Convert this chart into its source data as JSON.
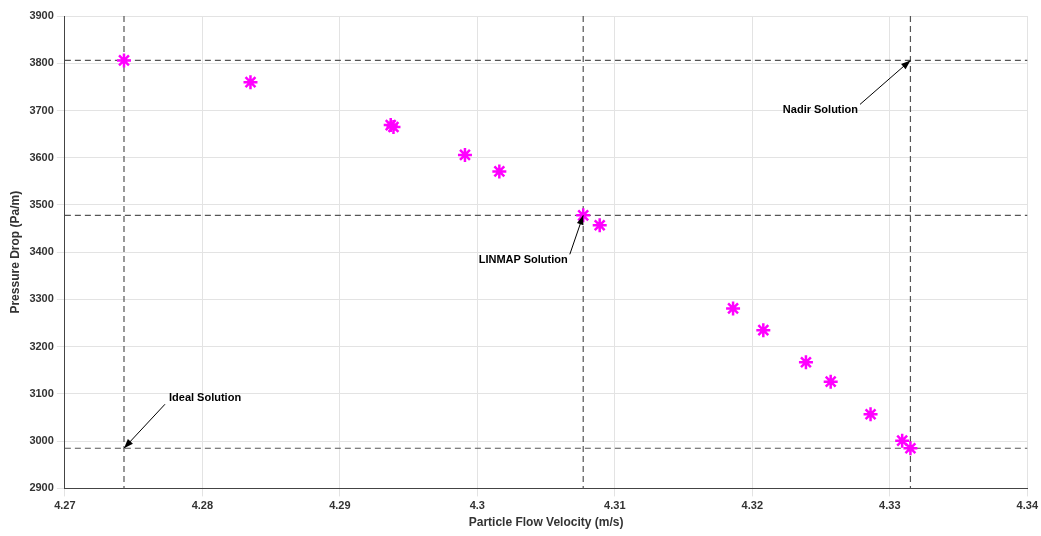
{
  "chart_data": {
    "type": "scatter",
    "xlabel": "Particle Flow Velocity (m/s)",
    "ylabel": "Pressure Drop (Pa/m)",
    "x": [
      4.2743,
      4.2835,
      4.2937,
      4.2939,
      4.2991,
      4.3016,
      4.3077,
      4.3089,
      4.3186,
      4.3208,
      4.3239,
      4.3257,
      4.3286,
      4.3309,
      4.3315
    ],
    "series": [
      {
        "color": "#ff00ff",
        "values": [
          3806,
          3760,
          3669,
          3665,
          3606,
          3571,
          3478,
          3457,
          3281,
          3235,
          3167,
          3126,
          3057,
          3001,
          2985
        ]
      }
    ],
    "marker": "cross",
    "grid": true,
    "xlim": [
      4.27,
      4.34
    ],
    "xticks": [
      4.27,
      4.28,
      4.29,
      4.3,
      4.31,
      4.32,
      4.33,
      4.34
    ],
    "ylim": [
      2900,
      3900
    ],
    "yticks": [
      2900,
      3000,
      3100,
      3200,
      3300,
      3400,
      3500,
      3600,
      3700,
      3800,
      3900
    ],
    "ref_lines": [
      {
        "axis": "y",
        "value": 3806,
        "color": "#555555",
        "line_style": "dashed"
      },
      {
        "axis": "x",
        "value": 4.3315,
        "color": "#555555",
        "line_style": "dashed"
      },
      {
        "axis": "y",
        "value": 3478,
        "color": "#555555",
        "line_style": "dashed"
      },
      {
        "axis": "x",
        "value": 4.3077,
        "color": "#555555",
        "line_style": "dashed"
      },
      {
        "axis": "y",
        "value": 2985,
        "color": "#555555",
        "line_style": "dashed"
      },
      {
        "axis": "x",
        "value": 4.2743,
        "color": "#555555",
        "line_style": "dashed"
      }
    ],
    "annotations": [
      {
        "text": "Ideal Solution",
        "x": 4.2743,
        "y": 2985
      },
      {
        "text": "LINMAP Solution",
        "x": 4.3077,
        "y": 3478
      },
      {
        "text": "Nadir Solution",
        "x": 4.3315,
        "y": 3806
      }
    ]
  }
}
